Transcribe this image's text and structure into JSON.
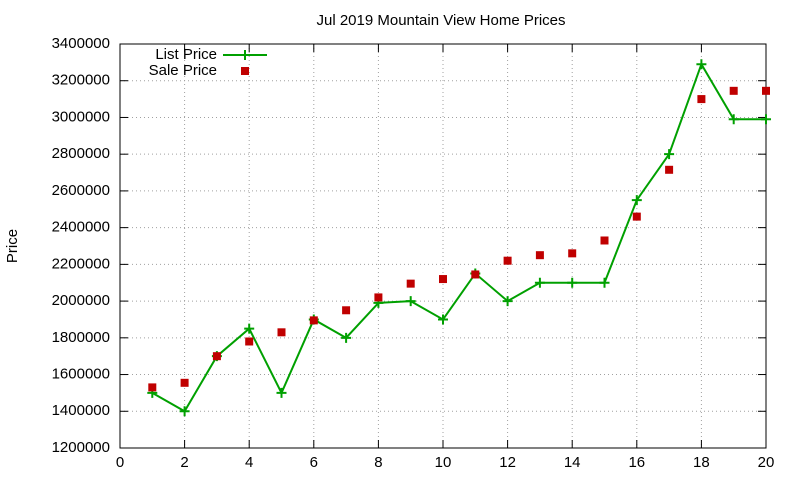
{
  "chart_data": {
    "type": "line",
    "title": "Jul 2019 Mountain View Home Prices",
    "y_label": "Price",
    "x": [
      1,
      2,
      3,
      4,
      5,
      6,
      7,
      8,
      9,
      10,
      11,
      12,
      13,
      14,
      15,
      16,
      17,
      18,
      19,
      20
    ],
    "series": [
      {
        "name": "List Price",
        "color": "#00a000",
        "style": "linespoints",
        "values": [
          1500000,
          1400000,
          1700000,
          1850000,
          1500000,
          1900000,
          1800000,
          1990000,
          2000000,
          1900000,
          2150000,
          2000000,
          2100000,
          2100000,
          2100000,
          2550000,
          2800000,
          3290000,
          2990000,
          2990000
        ]
      },
      {
        "name": "Sale Price",
        "color": "#c00000",
        "style": "points",
        "values": [
          1530000,
          1555000,
          1700000,
          1780000,
          1830000,
          1895000,
          1950000,
          2020000,
          2095000,
          2120000,
          2145000,
          2220000,
          2250000,
          2260000,
          2330000,
          2460000,
          2715000,
          3100000,
          3145000,
          3145000
        ]
      }
    ],
    "xlim": [
      0,
      20
    ],
    "xticks": [
      0,
      2,
      4,
      6,
      8,
      10,
      12,
      14,
      16,
      18,
      20
    ],
    "ylim": [
      1200000,
      3400000
    ],
    "yticks": [
      1200000,
      1400000,
      1600000,
      1800000,
      2000000,
      2200000,
      2400000,
      2600000,
      2800000,
      3000000,
      3200000,
      3400000
    ],
    "grid": true,
    "legend": "top-left"
  }
}
